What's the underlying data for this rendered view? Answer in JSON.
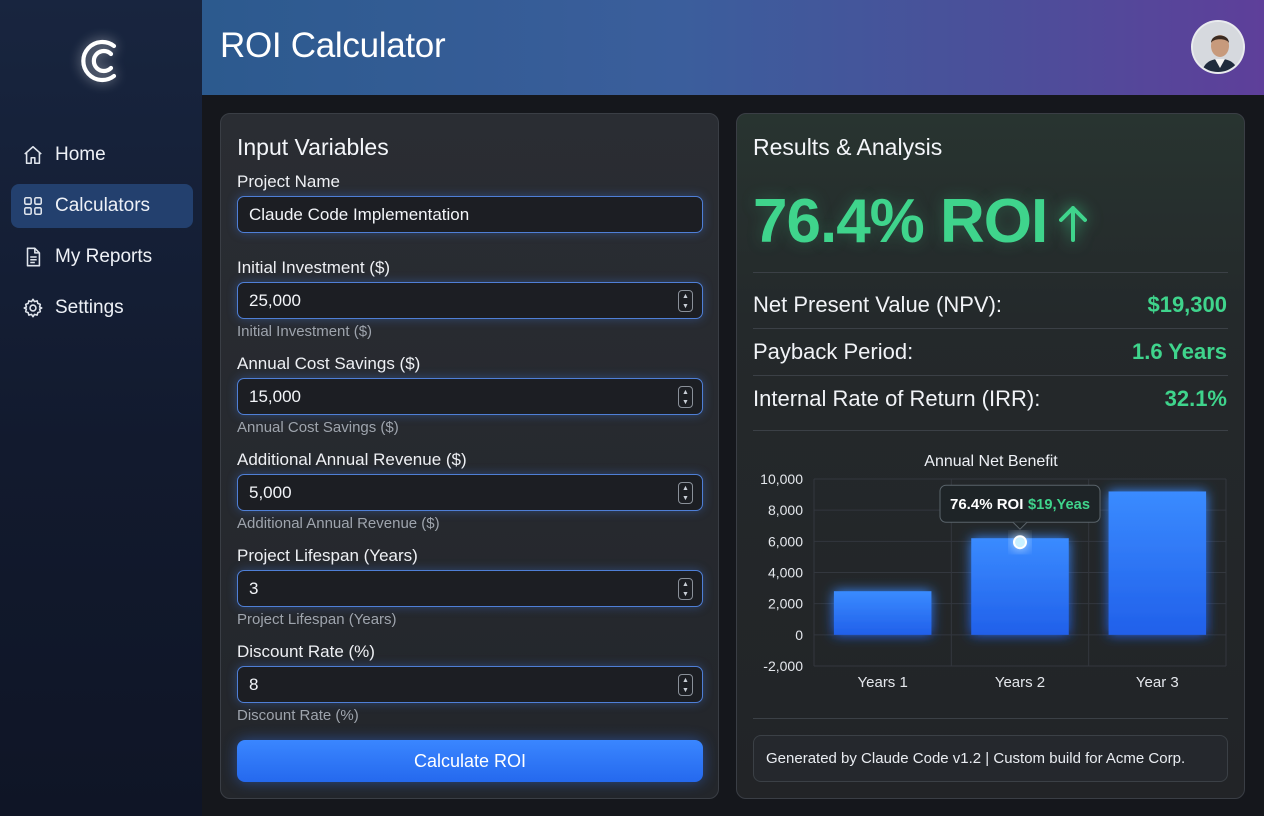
{
  "sidebar": {
    "items": [
      {
        "label": "Home",
        "icon": "home-icon"
      },
      {
        "label": "Calculators",
        "icon": "grid-icon",
        "active": true
      },
      {
        "label": "My Reports",
        "icon": "document-icon"
      },
      {
        "label": "Settings",
        "icon": "gear-icon"
      }
    ]
  },
  "header": {
    "title": "ROI Calculator"
  },
  "inputs": {
    "title": "Input Variables",
    "project_name": {
      "label": "Project Name",
      "value": "Claude Code Implementation"
    },
    "initial_investment": {
      "label": "Initial Investment ($)",
      "value": "25,000",
      "hint": "Initial Investment ($)"
    },
    "annual_savings": {
      "label": "Annual Cost Savings ($)",
      "value": "15,000",
      "hint": "Annual Cost Savings ($)"
    },
    "additional_revenue": {
      "label": "Additional Annual Revenue ($)",
      "value": "5,000",
      "hint": "Additional Annual Revenue ($)"
    },
    "lifespan": {
      "label": "Project Lifespan (Years)",
      "value": "3",
      "hint": "Project Lifespan (Years)"
    },
    "discount_rate": {
      "label": "Discount Rate (%)",
      "value": "8",
      "hint": "Discount Rate (%)"
    },
    "calculate_label": "Calculate ROI"
  },
  "results": {
    "title": "Results & Analysis",
    "roi": "76.4% ROI",
    "metrics": [
      {
        "label": "Net Present Value (NPV):",
        "value": "$19,300"
      },
      {
        "label": "Payback Period:",
        "value": "1.6 Years"
      },
      {
        "label": "Internal Rate of Return (IRR):",
        "value": "32.1%"
      }
    ],
    "footer": "Generated by Claude Code v1.2 | Custom build for Acme Corp."
  },
  "colors": {
    "accent_green": "#3fd48c",
    "accent_blue": "#3a86ff"
  },
  "chart_data": {
    "type": "bar",
    "title": "Annual Net Benefit",
    "categories": [
      "Years 1",
      "Years 2",
      "Year 3"
    ],
    "values": [
      2800,
      6200,
      9200
    ],
    "ylim": [
      -2000,
      10000
    ],
    "yticks": [
      "10,000",
      "8,000",
      "6,000",
      "4,000",
      "2,000",
      "0",
      "-2,000"
    ],
    "ytick_values": [
      10000,
      8000,
      6000,
      4000,
      2000,
      0,
      -2000
    ],
    "grid": true,
    "tooltip": {
      "category_index": 1,
      "roi": "76.4% ROI",
      "value": "$19,Yeas"
    }
  }
}
